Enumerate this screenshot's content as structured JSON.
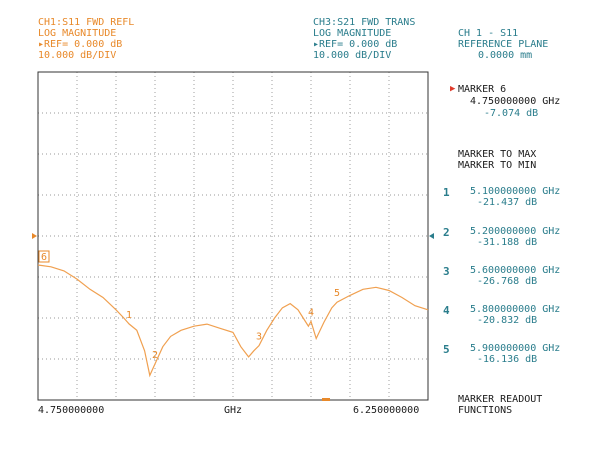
{
  "ch1": {
    "line1": "CH1:S11 FWD REFL",
    "line2": "LOG MAGNITUDE",
    "line3": "▸REF= 0.000 dB",
    "line4": "10.000 dB/DIV"
  },
  "ch3": {
    "line1": "CH3:S21 FWD TRANS",
    "line2": "LOG MAGNITUDE",
    "line3": "▸REF= 0.000 dB",
    "line4": "10.000 dB/DIV"
  },
  "ref_plane": {
    "line1": "CH 1 - S11",
    "line2": "REFERENCE PLANE",
    "line3": "0.0000 mm"
  },
  "active_marker": {
    "title": "MARKER 6",
    "freq": "4.750000000 GHz",
    "value": "-7.074 dB"
  },
  "menu": {
    "to_max": "MARKER TO MAX",
    "to_min": "MARKER TO MIN",
    "readout_1": "MARKER READOUT",
    "readout_2": "FUNCTIONS"
  },
  "markers": [
    {
      "num": "1",
      "freq": "5.100000000 GHz",
      "value": "-21.437 dB"
    },
    {
      "num": "2",
      "freq": "5.200000000 GHz",
      "value": "-31.188 dB"
    },
    {
      "num": "3",
      "freq": "5.600000000 GHz",
      "value": "-26.768 dB"
    },
    {
      "num": "4",
      "freq": "5.800000000 GHz",
      "value": "-20.832 dB"
    },
    {
      "num": "5",
      "freq": "5.900000000 GHz",
      "value": "-16.136 dB"
    }
  ],
  "x_axis": {
    "start": "4.750000000",
    "center": "GHz",
    "stop": "6.250000000"
  },
  "colors": {
    "trace": "#f0a050",
    "ch1": "#e8892a",
    "ch3": "#2a7d8c",
    "grid": "#777777"
  },
  "chart_data": {
    "type": "line",
    "x_start_ghz": 4.75,
    "x_stop_ghz": 6.25,
    "y_ref_db": 0,
    "y_scale_db_per_div": 10,
    "x": [
      4.75,
      4.8,
      4.85,
      4.9,
      4.95,
      5.0,
      5.05,
      5.08,
      5.1,
      5.13,
      5.16,
      5.18,
      5.2,
      5.23,
      5.26,
      5.3,
      5.35,
      5.4,
      5.45,
      5.5,
      5.53,
      5.56,
      5.58,
      5.6,
      5.63,
      5.66,
      5.69,
      5.72,
      5.75,
      5.77,
      5.79,
      5.8,
      5.82,
      5.85,
      5.88,
      5.9,
      5.95,
      6.0,
      6.05,
      6.1,
      6.15,
      6.2,
      6.25
    ],
    "y": [
      -7.074,
      -7.5,
      -8.5,
      -10.5,
      -13,
      -15,
      -18,
      -20,
      -21.437,
      -23,
      -28,
      -34,
      -31.188,
      -27,
      -24.5,
      -23,
      -22,
      -21.5,
      -22.5,
      -23.5,
      -27,
      -29.5,
      -28,
      -26.768,
      -23,
      -20,
      -17.5,
      -16.5,
      -18,
      -20,
      -22,
      -20.832,
      -25,
      -21,
      -17.5,
      -16.136,
      -14.5,
      -13,
      -12.5,
      -13.3,
      -15,
      -17,
      -18
    ],
    "markers": [
      {
        "label": "1",
        "x": 5.1,
        "y": -21.437
      },
      {
        "label": "2",
        "x": 5.2,
        "y": -31.188
      },
      {
        "label": "3",
        "x": 5.6,
        "y": -26.768
      },
      {
        "label": "4",
        "x": 5.8,
        "y": -20.832
      },
      {
        "label": "5",
        "x": 5.9,
        "y": -16.136
      },
      {
        "label": "6",
        "x": 4.75,
        "y": -7.074
      }
    ],
    "grid": true
  }
}
